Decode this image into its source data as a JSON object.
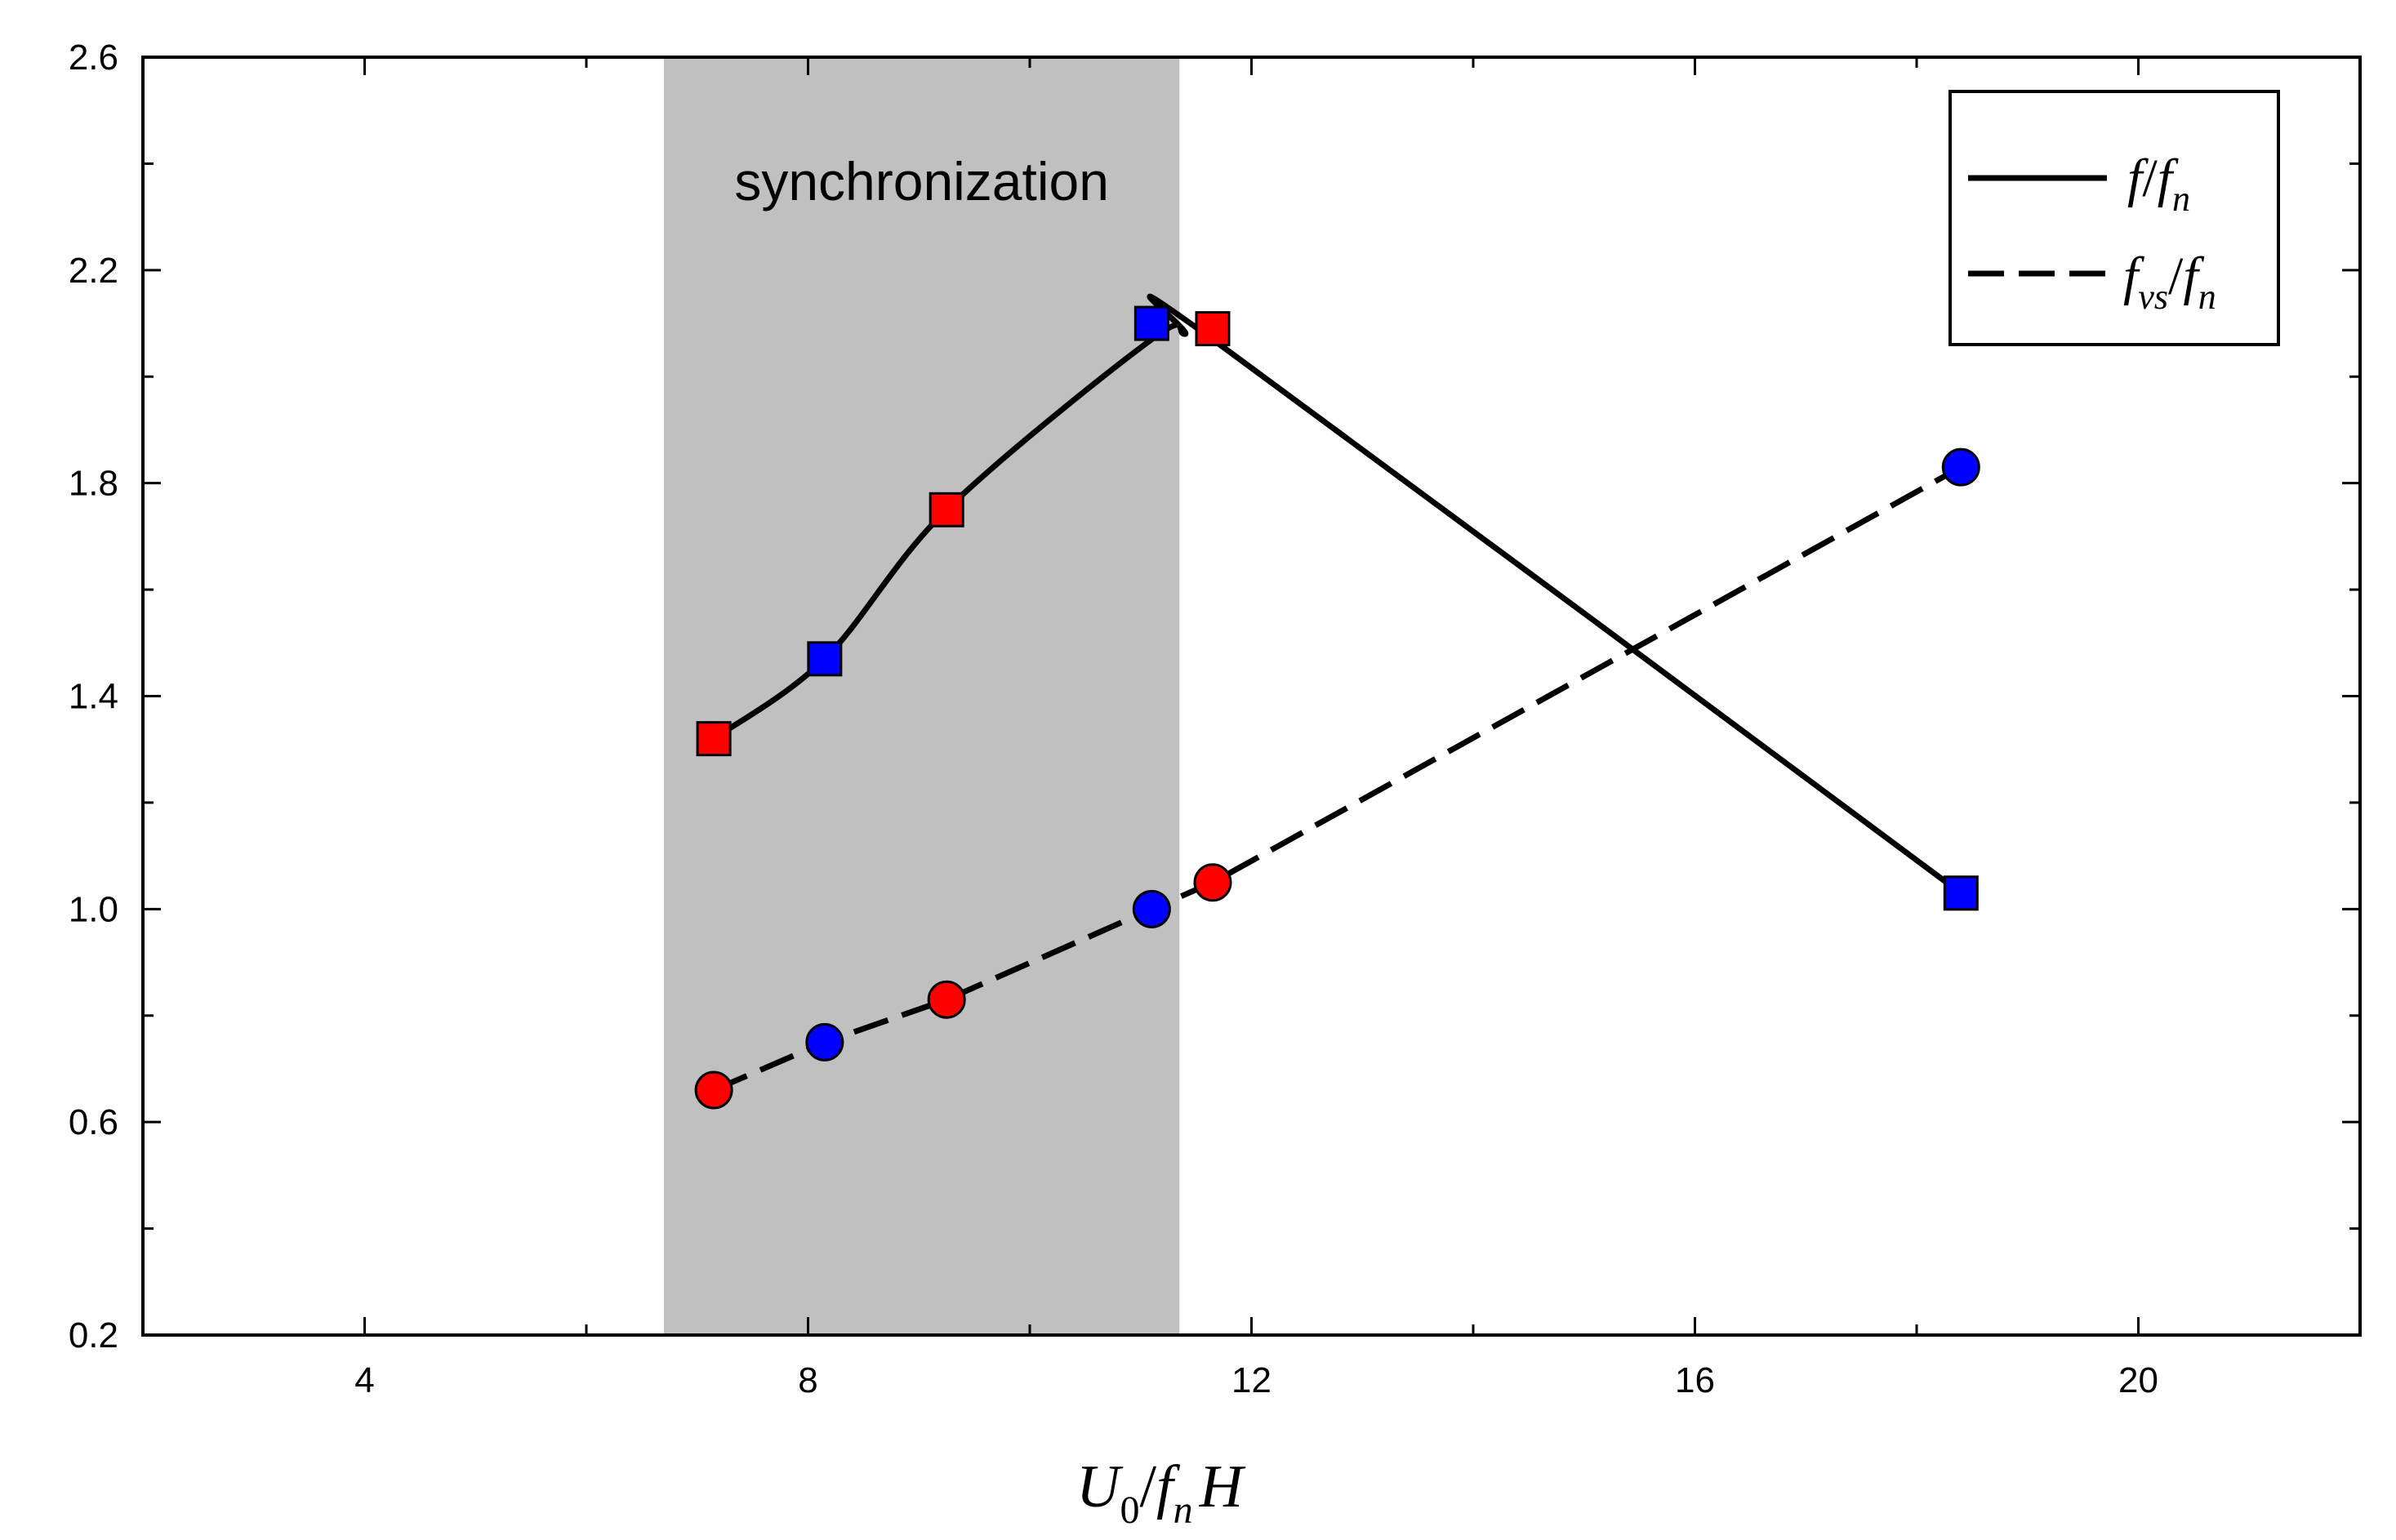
{
  "chart_data": {
    "type": "line",
    "title": "",
    "xlabel": {
      "base": "U",
      "sub0": "0",
      "slash": "/",
      "f": "f",
      "subn": "n",
      "H": "H"
    },
    "ylabel": "",
    "xlim": [
      2,
      22
    ],
    "ylim": [
      0.2,
      2.6
    ],
    "x_ticks": [
      4,
      8,
      12,
      16,
      20
    ],
    "x_tick_labels": [
      "4",
      "8",
      "12",
      "16",
      "20"
    ],
    "y_ticks": [
      0.2,
      0.6,
      1.0,
      1.4,
      1.8,
      2.2,
      2.6
    ],
    "y_tick_labels": [
      "0.2",
      "0.6",
      "1.0",
      "1.4",
      "1.8",
      "2.2",
      "2.6"
    ],
    "shaded_region": {
      "x": [
        6.7,
        11.35
      ],
      "label": "synchronization",
      "color": "#c0c0c0"
    },
    "series": [
      {
        "name": "f/f_n",
        "legend": {
          "f": "f",
          "slash": "/",
          "f2": "f",
          "sub": "n"
        },
        "line_style": "solid",
        "marker": "square",
        "curve_x": [
          7.15,
          8.15,
          9.25,
          11.1,
          11.4,
          11.65,
          18.4
        ],
        "curve_y": [
          1.32,
          1.47,
          1.75,
          2.07,
          2.08,
          2.07,
          1.03
        ],
        "points": [
          {
            "x": 7.15,
            "y": 1.32,
            "color": "#ff0000"
          },
          {
            "x": 8.15,
            "y": 1.47,
            "color": "#0000ff"
          },
          {
            "x": 9.25,
            "y": 1.75,
            "color": "#ff0000"
          },
          {
            "x": 11.1,
            "y": 2.1,
            "color": "#0000ff"
          },
          {
            "x": 11.65,
            "y": 2.09,
            "color": "#ff0000"
          },
          {
            "x": 18.4,
            "y": 1.03,
            "color": "#0000ff"
          }
        ]
      },
      {
        "name": "f_vs/f_n",
        "legend": {
          "f": "f",
          "sub1": "vs",
          "slash": "/",
          "f2": "f",
          "sub2": "n"
        },
        "line_style": "dashed",
        "marker": "circle",
        "curve_x": [
          7.15,
          8.15,
          9.25,
          11.1,
          11.65,
          18.4
        ],
        "curve_y": [
          0.66,
          0.75,
          0.83,
          1.0,
          1.05,
          1.83
        ],
        "points": [
          {
            "x": 7.15,
            "y": 0.66,
            "color": "#ff0000"
          },
          {
            "x": 8.15,
            "y": 0.75,
            "color": "#0000ff"
          },
          {
            "x": 9.25,
            "y": 0.83,
            "color": "#ff0000"
          },
          {
            "x": 11.1,
            "y": 1.0,
            "color": "#0000ff"
          },
          {
            "x": 11.65,
            "y": 1.05,
            "color": "#ff0000"
          },
          {
            "x": 18.4,
            "y": 1.83,
            "color": "#0000ff"
          }
        ]
      }
    ],
    "legend_position": "top-right"
  }
}
